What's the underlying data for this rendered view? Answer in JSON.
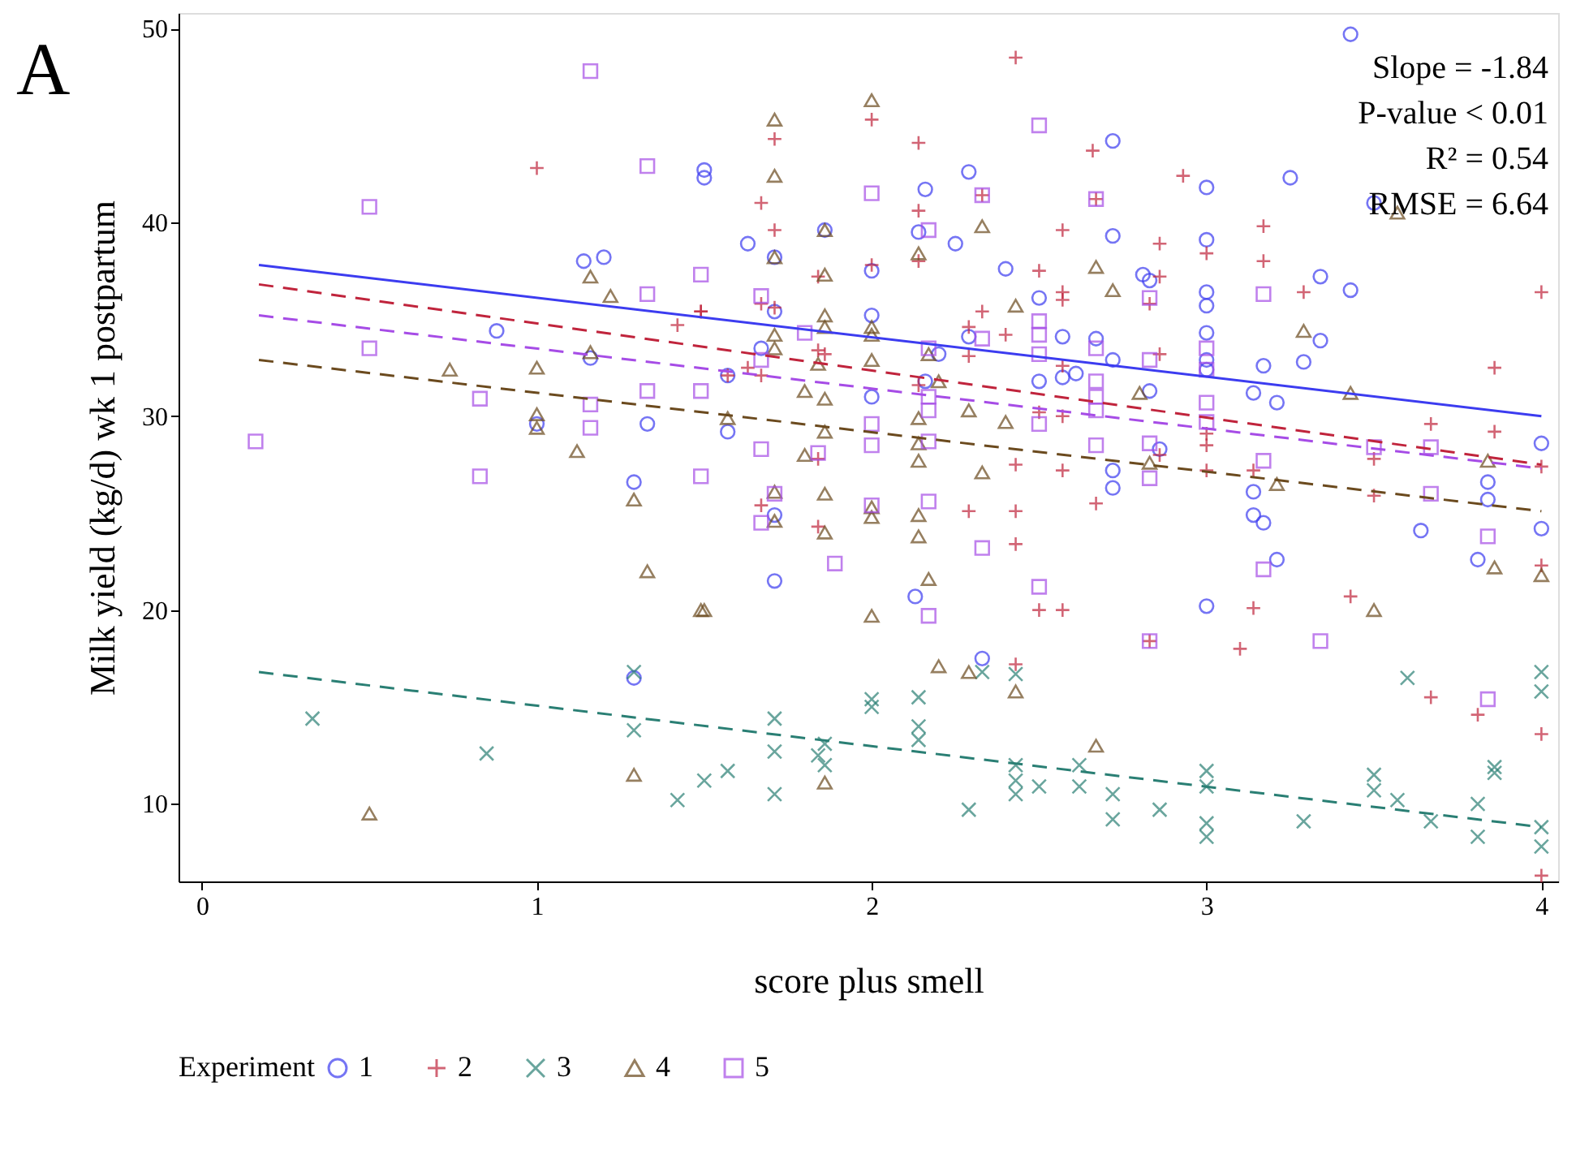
{
  "chart_data": {
    "type": "scatter",
    "title": "A",
    "xlabel": "score plus smell",
    "ylabel": "Milk yield (kg/d) wk 1 postpartum",
    "legend_title": "Experiment",
    "legend": "bottom",
    "grid": false,
    "xlim": [
      -0.07,
      4.05
    ],
    "ylim": [
      6,
      50.8
    ],
    "xticks": [
      0,
      1,
      2,
      3,
      4
    ],
    "yticks": [
      10,
      20,
      30,
      40,
      50
    ],
    "annotations": [
      "Slope = -1.84",
      "P-value < 0.01",
      "R² = 0.54",
      "RMSE = 6.64"
    ],
    "series": [
      {
        "name": "1",
        "marker": "circle",
        "color": "#3c3cf0",
        "x": [
          1.14,
          1.2,
          0.88,
          1.16,
          1.0,
          1.33,
          1.29,
          1.29,
          1.5,
          1.5,
          1.63,
          1.71,
          1.71,
          1.67,
          1.57,
          1.57,
          1.86,
          2.0,
          2.0,
          2.0,
          2.14,
          2.16,
          2.29,
          2.25,
          2.2,
          2.16,
          2.29,
          2.4,
          2.5,
          2.57,
          2.5,
          2.57,
          2.61,
          2.67,
          2.72,
          2.72,
          2.72,
          2.72,
          2.72,
          1.71,
          1.71,
          2.13,
          2.33,
          3.43,
          3.0,
          3.25,
          3.0,
          2.81,
          2.83,
          3.34,
          3.43,
          3.0,
          3.0,
          3.0,
          3.34,
          3.29,
          3.17,
          3.0,
          3.0,
          3.14,
          3.21,
          2.83,
          2.86,
          3.14,
          3.14,
          3.17,
          3.84,
          3.84,
          3.64,
          4.0,
          4.0,
          3.81,
          3.21,
          3.0,
          3.5
        ],
        "values": [
          38.0,
          38.2,
          34.4,
          33.0,
          29.6,
          29.6,
          26.6,
          16.5,
          42.7,
          42.3,
          38.9,
          38.2,
          35.4,
          33.5,
          32.1,
          29.2,
          39.6,
          37.5,
          35.2,
          31.0,
          39.5,
          41.7,
          42.6,
          38.9,
          33.2,
          31.8,
          34.1,
          37.6,
          36.1,
          34.1,
          31.8,
          32.0,
          32.2,
          34.0,
          44.2,
          39.3,
          32.9,
          27.2,
          26.3,
          24.9,
          21.5,
          20.7,
          17.5,
          49.7,
          41.8,
          42.3,
          39.1,
          37.3,
          37.0,
          37.2,
          36.5,
          36.4,
          35.7,
          34.3,
          33.9,
          32.8,
          32.6,
          32.9,
          32.4,
          31.2,
          30.7,
          31.3,
          28.3,
          26.1,
          24.9,
          24.5,
          26.6,
          25.7,
          24.1,
          28.6,
          24.2,
          22.6,
          22.6,
          20.2,
          41.0
        ]
      },
      {
        "name": "2",
        "marker": "plus",
        "color": "#c0243c",
        "x": [
          1.0,
          1.49,
          1.42,
          2.43,
          2.0,
          1.71,
          2.14,
          2.66,
          1.67,
          2.14,
          1.71,
          2.33,
          2.67,
          2.57,
          2.0,
          1.84,
          2.14,
          2.5,
          2.57,
          2.57,
          1.49,
          1.67,
          1.71,
          2.33,
          2.4,
          1.84,
          1.86,
          1.63,
          1.67,
          1.57,
          2.29,
          2.29,
          2.14,
          2.5,
          2.57,
          2.57,
          1.84,
          2.43,
          2.57,
          2.67,
          1.67,
          1.84,
          2.29,
          2.43,
          2.43,
          2.5,
          2.57,
          2.43,
          2.93,
          3.0,
          2.86,
          3.17,
          3.17,
          2.86,
          2.83,
          3.29,
          4.0,
          3.86,
          2.86,
          3.0,
          3.0,
          3.0,
          2.86,
          3.14,
          3.5,
          3.67,
          3.86,
          4.0,
          3.5,
          4.0,
          3.14,
          3.43,
          2.83,
          3.1,
          3.67,
          3.81,
          4.0,
          4.0
        ],
        "values": [
          42.8,
          35.4,
          34.7,
          48.5,
          45.3,
          44.3,
          44.1,
          43.7,
          41.0,
          40.6,
          39.6,
          41.4,
          41.2,
          39.6,
          37.8,
          37.2,
          38.0,
          37.5,
          36.4,
          36.0,
          35.4,
          35.8,
          35.6,
          35.4,
          34.2,
          33.4,
          33.2,
          32.5,
          32.1,
          32.1,
          34.6,
          33.1,
          31.6,
          30.2,
          30.0,
          32.6,
          27.8,
          27.5,
          27.2,
          25.5,
          25.4,
          24.3,
          25.1,
          25.1,
          23.4,
          20.0,
          20.0,
          17.2,
          42.4,
          38.4,
          38.9,
          39.8,
          38.0,
          37.2,
          35.8,
          36.4,
          36.4,
          32.5,
          33.2,
          29.1,
          28.5,
          27.2,
          28.0,
          27.2,
          27.8,
          29.6,
          29.2,
          27.4,
          25.9,
          22.3,
          20.1,
          20.7,
          18.4,
          18.0,
          15.5,
          14.6,
          13.6,
          6.3
        ]
      },
      {
        "name": "3",
        "marker": "cross",
        "color": "#2a7f74",
        "x": [
          1.29,
          0.33,
          0.85,
          1.29,
          1.5,
          1.42,
          1.57,
          1.71,
          1.71,
          1.71,
          1.84,
          1.86,
          1.86,
          2.0,
          2.0,
          2.14,
          2.14,
          2.14,
          2.33,
          2.43,
          2.29,
          2.43,
          2.43,
          2.43,
          2.5,
          2.62,
          2.62,
          2.72,
          2.72,
          2.86,
          3.0,
          3.0,
          3.0,
          3.0,
          3.29,
          3.5,
          3.5,
          3.57,
          3.6,
          3.67,
          3.81,
          3.81,
          3.86,
          3.86,
          4.0,
          4.0,
          4.0,
          4.0
        ],
        "values": [
          16.8,
          14.4,
          12.6,
          13.8,
          11.2,
          10.2,
          11.7,
          14.4,
          12.7,
          10.5,
          12.5,
          13.1,
          12.0,
          15.4,
          15.0,
          15.5,
          14.0,
          13.3,
          16.8,
          16.7,
          9.7,
          12.0,
          11.2,
          10.5,
          10.9,
          12.0,
          10.9,
          10.5,
          9.2,
          9.7,
          11.7,
          10.9,
          9.0,
          8.3,
          9.1,
          11.5,
          10.7,
          10.2,
          16.5,
          9.1,
          10.0,
          8.3,
          11.9,
          11.6,
          16.8,
          15.8,
          8.8,
          7.8
        ]
      },
      {
        "name": "4",
        "marker": "triangle",
        "color": "#6b4a1e",
        "x": [
          1.16,
          1.22,
          0.74,
          1.0,
          1.16,
          1.0,
          1.0,
          1.12,
          1.29,
          1.33,
          1.5,
          1.29,
          0.5,
          2.0,
          1.71,
          1.71,
          1.86,
          1.71,
          2.14,
          2.33,
          1.86,
          2.67,
          2.72,
          2.43,
          1.86,
          1.86,
          2.0,
          2.0,
          1.71,
          1.71,
          2.17,
          1.84,
          2.0,
          2.2,
          1.8,
          1.86,
          2.29,
          2.4,
          2.14,
          1.57,
          1.86,
          2.14,
          1.8,
          2.14,
          2.33,
          1.86,
          1.71,
          1.71,
          2.0,
          2.0,
          2.14,
          1.86,
          2.14,
          2.17,
          1.49,
          2.0,
          2.2,
          2.29,
          2.43,
          2.67,
          1.86,
          3.57,
          3.29,
          2.8,
          3.43,
          2.83,
          3.21,
          3.84,
          3.86,
          4.0,
          3.5
        ],
        "values": [
          37.2,
          36.2,
          32.4,
          32.5,
          33.3,
          30.1,
          29.4,
          28.2,
          25.7,
          22.0,
          20.0,
          11.5,
          9.5,
          46.3,
          45.3,
          42.4,
          39.6,
          38.2,
          38.4,
          39.8,
          37.3,
          37.7,
          36.5,
          35.7,
          35.2,
          34.6,
          34.6,
          34.2,
          34.2,
          33.5,
          33.2,
          32.7,
          32.9,
          31.8,
          31.3,
          30.9,
          30.3,
          29.7,
          29.9,
          29.9,
          29.2,
          28.6,
          28.0,
          27.7,
          27.1,
          26.0,
          26.1,
          24.6,
          25.3,
          24.8,
          24.9,
          24.0,
          23.8,
          21.6,
          20.0,
          19.7,
          17.1,
          16.8,
          15.8,
          13.0,
          11.1,
          40.5,
          34.4,
          31.2,
          31.2,
          27.6,
          26.5,
          27.7,
          22.2,
          21.8,
          20.0
        ]
      },
      {
        "name": "5",
        "marker": "square",
        "color": "#a64ce6",
        "x": [
          1.16,
          1.33,
          0.5,
          1.49,
          1.33,
          0.5,
          0.83,
          1.33,
          1.49,
          1.16,
          1.16,
          0.16,
          0.83,
          1.49,
          1.67,
          1.67,
          1.8,
          2.0,
          2.17,
          2.33,
          2.5,
          2.67,
          2.33,
          2.5,
          2.5,
          2.5,
          2.17,
          2.17,
          2.17,
          2.17,
          2.67,
          2.67,
          2.67,
          2.67,
          2.5,
          2.0,
          2.0,
          1.67,
          1.84,
          2.67,
          1.71,
          1.67,
          2.0,
          2.17,
          1.89,
          2.33,
          2.5,
          2.17,
          2.83,
          3.17,
          2.83,
          3.0,
          3.0,
          3.0,
          3.0,
          2.83,
          2.83,
          3.17,
          3.5,
          3.67,
          3.67,
          3.84,
          3.17,
          2.83,
          3.34,
          3.84
        ],
        "values": [
          47.8,
          42.9,
          40.8,
          37.3,
          36.3,
          33.5,
          30.9,
          31.3,
          31.3,
          30.6,
          29.4,
          28.7,
          26.9,
          26.9,
          36.2,
          32.9,
          34.3,
          41.5,
          39.6,
          41.4,
          45.0,
          41.2,
          34.0,
          34.9,
          34.2,
          33.2,
          33.5,
          31.0,
          30.3,
          28.7,
          33.5,
          31.8,
          31.0,
          30.3,
          29.6,
          29.6,
          28.5,
          28.3,
          28.1,
          28.5,
          26.0,
          24.5,
          25.4,
          25.6,
          22.4,
          23.2,
          21.2,
          19.7,
          36.1,
          36.3,
          32.9,
          33.5,
          32.4,
          30.7,
          29.7,
          28.6,
          26.8,
          27.7,
          28.4,
          28.4,
          26.0,
          23.8,
          22.1,
          18.4,
          18.4,
          15.4
        ]
      },
      {
        "type": "line",
        "line_style": "solid",
        "color": "#3c3cf0",
        "x": [
          0.17,
          4
        ],
        "values": [
          37.8,
          30.0
        ]
      },
      {
        "type": "line",
        "line_style": "dashed",
        "color": "#c0243c",
        "x": [
          0.17,
          4
        ],
        "values": [
          36.8,
          27.5
        ]
      },
      {
        "type": "line",
        "line_style": "dashed",
        "color": "#2a7f74",
        "x": [
          0.17,
          4
        ],
        "values": [
          16.8,
          8.8
        ]
      },
      {
        "type": "line",
        "line_style": "dashed",
        "color": "#6b4a1e",
        "x": [
          0.17,
          4
        ],
        "values": [
          32.9,
          25.1
        ]
      },
      {
        "type": "line",
        "line_style": "dashed",
        "color": "#a64ce6",
        "x": [
          0.17,
          4
        ],
        "values": [
          35.2,
          27.3
        ]
      }
    ]
  }
}
